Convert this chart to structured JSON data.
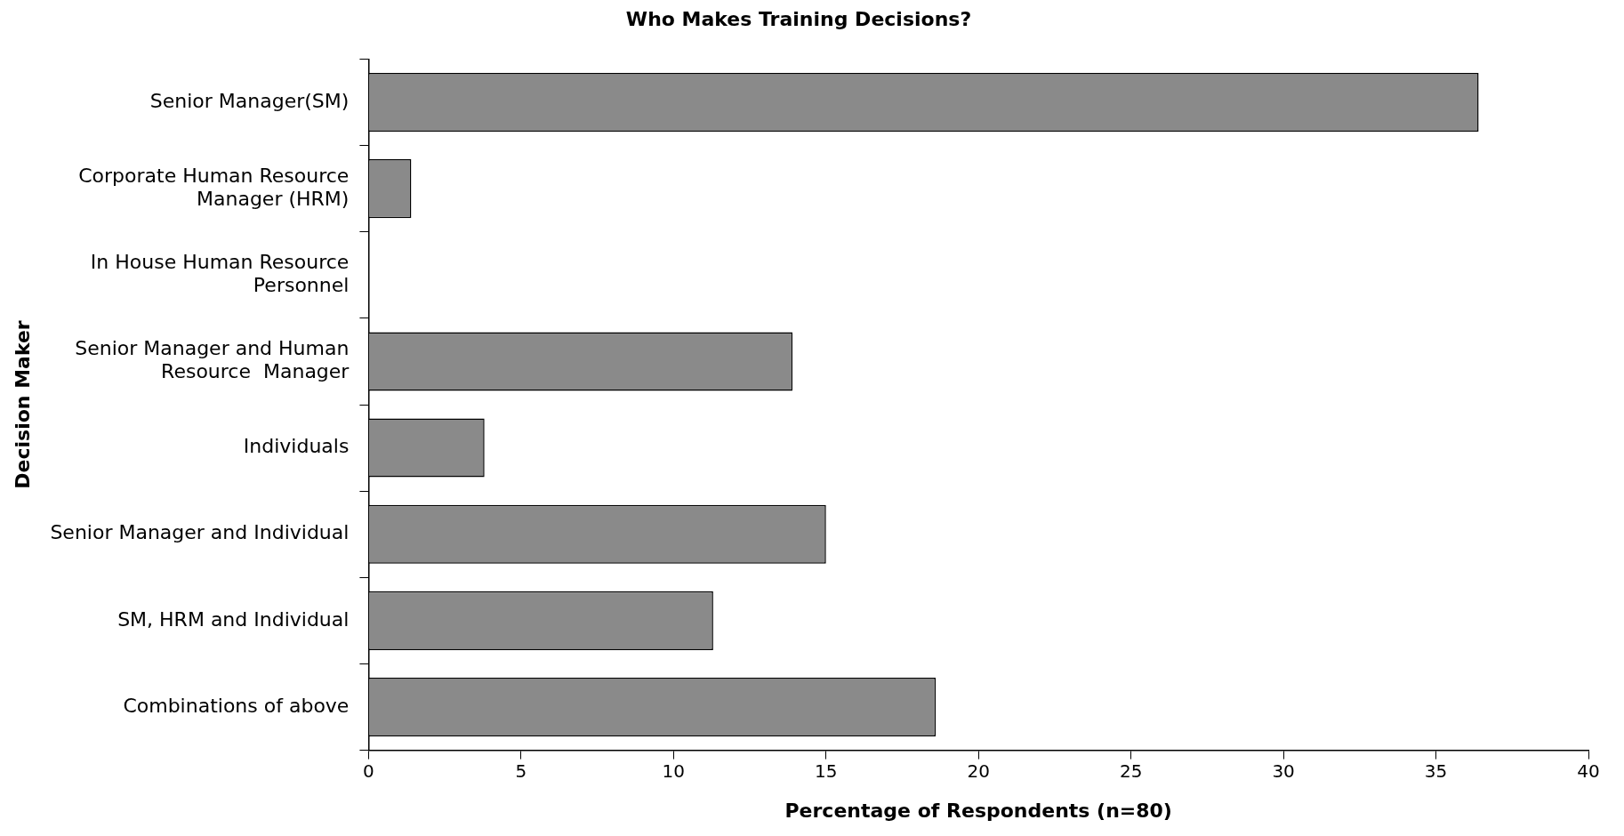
{
  "chart_data": {
    "type": "bar",
    "orientation": "horizontal",
    "title": "Who Makes Training Decisions?",
    "xlabel": "Percentage of Respondents (n=80)",
    "ylabel": "Decision Maker",
    "categories": [
      "Senior Manager(SM)",
      "Corporate Human Resource\nManager (HRM)",
      "In House Human Resource\nPersonnel",
      "Senior Manager and Human\nResource  Manager",
      "Individuals",
      "Senior Manager and Individual",
      "SM, HRM and Individual",
      "Combinations of above"
    ],
    "values": [
      36.4,
      1.4,
      0,
      13.9,
      3.8,
      15,
      11.3,
      18.6
    ],
    "color": "#8a8a8a",
    "xlim": [
      0,
      40
    ],
    "xticks": [
      0,
      5,
      10,
      15,
      20,
      25,
      30,
      35,
      40
    ],
    "grid": false,
    "legend": false
  }
}
